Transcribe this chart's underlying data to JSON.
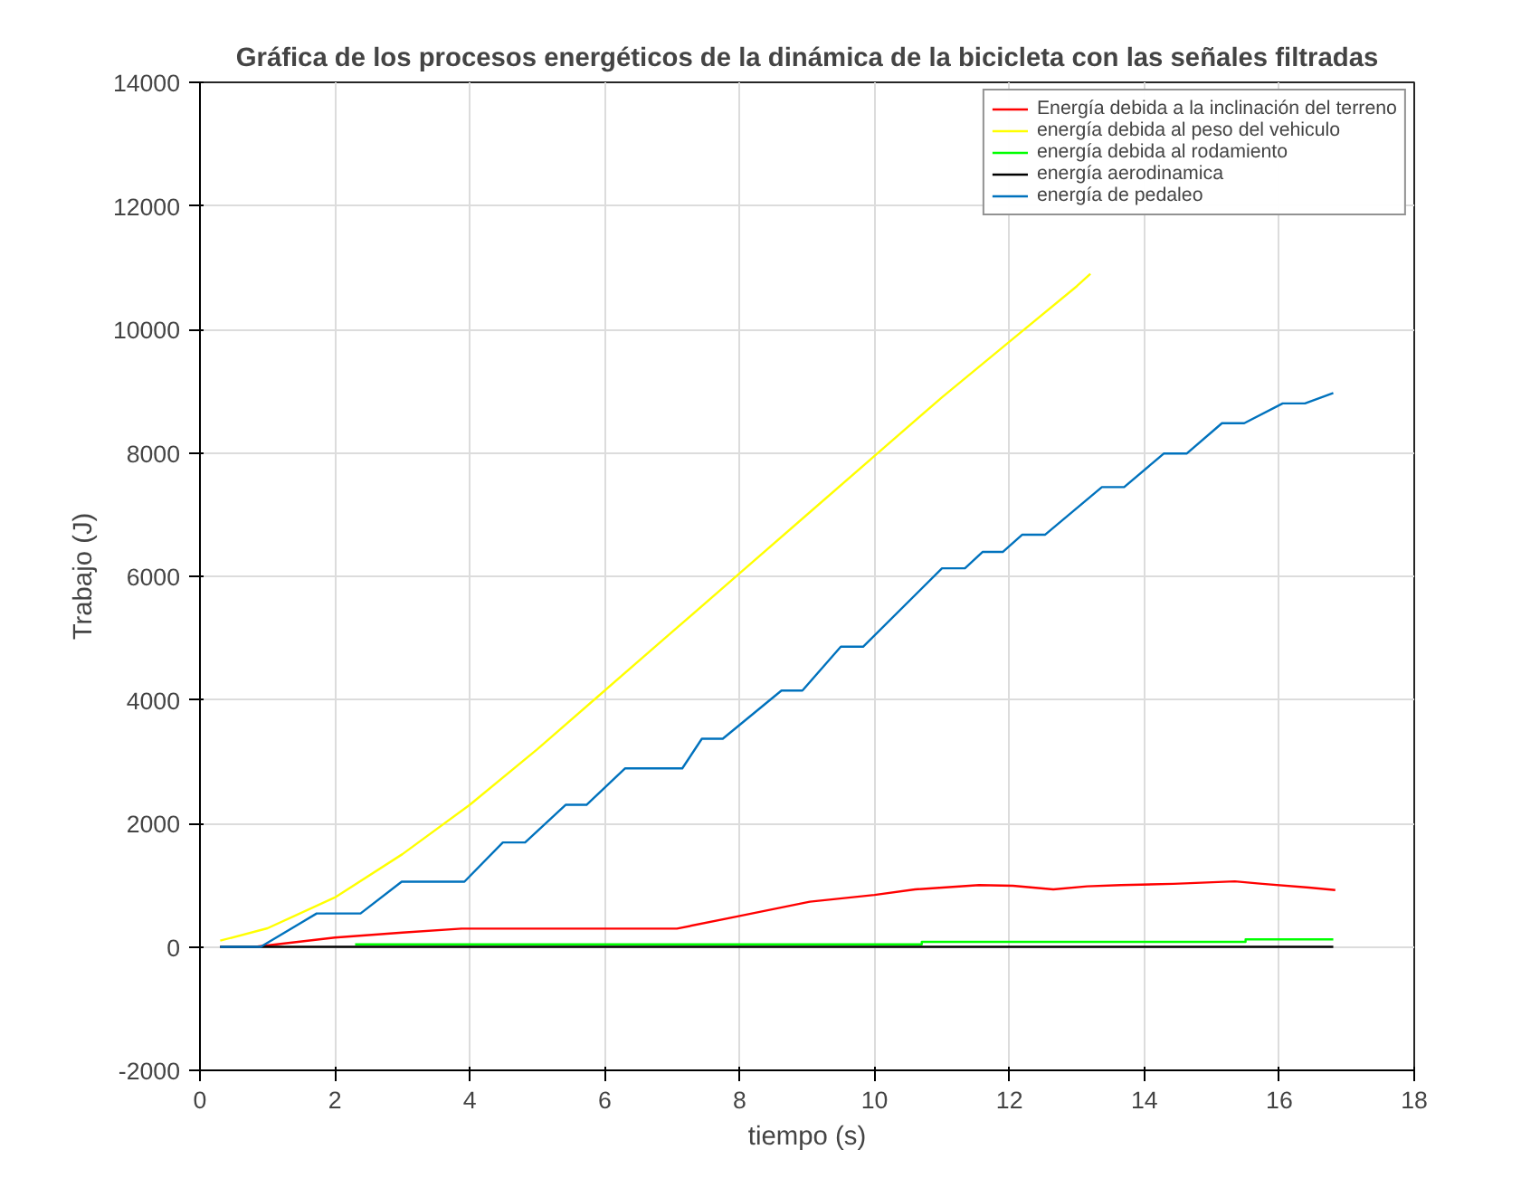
{
  "chart_data": {
    "type": "line",
    "title": "Gráfica de los procesos energéticos de la dinámica de la bicicleta con las señales filtradas",
    "xlabel": "tiempo (s)",
    "ylabel": "Trabajo (J)",
    "xlim": [
      0,
      18
    ],
    "ylim": [
      -2000,
      14000
    ],
    "xticks": [
      0,
      2,
      4,
      6,
      8,
      10,
      12,
      14,
      16,
      18
    ],
    "yticks": [
      -2000,
      0,
      2000,
      4000,
      6000,
      8000,
      10000,
      12000,
      14000
    ],
    "grid": true,
    "legend": "top right",
    "marker": "none",
    "line_style": "solid",
    "series": [
      {
        "name": "Energía debida a la inclinación del terreno",
        "color": "#ff0000",
        "x": [
          0.3,
          0.82,
          2,
          3,
          3.88,
          7.07,
          8,
          9.04,
          10,
          10.6,
          11.55,
          12.05,
          12.65,
          13.15,
          13.65,
          14.43,
          15.34,
          15.75,
          16.44,
          16.83
        ],
        "values": [
          0,
          0,
          150,
          230,
          295,
          295,
          500,
          730,
          840,
          930,
          1000,
          990,
          930,
          980,
          1000,
          1020,
          1060,
          1020,
          960,
          920
        ]
      },
      {
        "name": "energía debida al peso del vehiculo",
        "color": "#ffff00",
        "x": [
          0.3,
          1,
          2,
          3,
          4,
          5,
          6,
          7,
          8,
          9,
          10,
          11,
          12,
          13,
          13.2
        ],
        "values": [
          100,
          300,
          800,
          1500,
          2300,
          3200,
          4150,
          5100,
          6050,
          7000,
          7950,
          8900,
          9800,
          10700,
          10900
        ]
      },
      {
        "name": "energía debida al rodamiento",
        "color": "#00ff00",
        "x": [
          2.3,
          10.7,
          10.7,
          15.5,
          15.5,
          16.8
        ],
        "values": [
          40,
          40,
          80,
          80,
          120,
          120
        ]
      },
      {
        "name": "energía aerodinamica",
        "color": "#000000",
        "x": [
          0.3,
          16.8
        ],
        "values": [
          0,
          0
        ]
      },
      {
        "name": "energía de pedaleo",
        "color": "#0072bd",
        "x": [
          0.3,
          0.9,
          1.73,
          2.38,
          2.99,
          3.92,
          4.49,
          4.82,
          5.42,
          5.73,
          6.3,
          7.15,
          7.44,
          7.75,
          8.62,
          8.93,
          9.5,
          9.83,
          11.0,
          11.34,
          11.6,
          11.9,
          12.19,
          12.53,
          13.37,
          13.7,
          14.29,
          14.63,
          15.15,
          15.48,
          16.05,
          16.38,
          16.8
        ],
        "values": [
          0,
          0,
          540,
          540,
          1055,
          1055,
          1690,
          1690,
          2300,
          2300,
          2890,
          2890,
          3370,
          3370,
          4150,
          4150,
          4860,
          4860,
          6130,
          6130,
          6395,
          6395,
          6675,
          6675,
          7445,
          7445,
          7990,
          7990,
          8480,
          8480,
          8800,
          8800,
          8970
        ]
      }
    ]
  }
}
